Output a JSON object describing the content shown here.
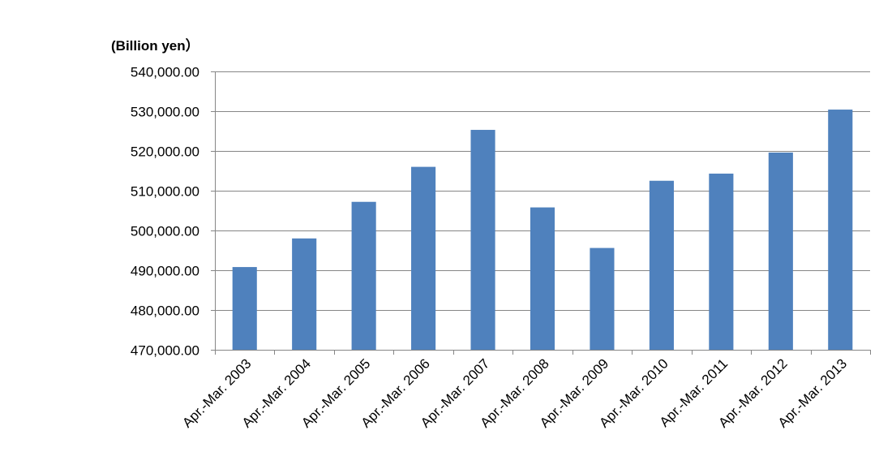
{
  "chart_data": {
    "type": "bar",
    "unit_label": "(Billion yen）",
    "categories": [
      "Apr.-Mar. 2003",
      "Apr.-Mar. 2004",
      "Apr.-Mar. 2005",
      "Apr.-Mar. 2006",
      "Apr.-Mar. 2007",
      "Apr.-Mar. 2008",
      "Apr.-Mar. 2009",
      "Apr.-Mar. 2010",
      "Apr.-Mar. 2011",
      "Apr.-Mar. 2012",
      "Apr.-Mar. 2013"
    ],
    "values": [
      490800,
      498000,
      507200,
      516000,
      525300,
      505800,
      495600,
      512500,
      514300,
      519600,
      530400
    ],
    "ylim": [
      470000,
      540000
    ],
    "yticks": [
      470000,
      480000,
      490000,
      500000,
      510000,
      520000,
      530000,
      540000
    ],
    "ytick_labels": [
      "470,000.00",
      "480,000.00",
      "490,000.00",
      "500,000.00",
      "510,000.00",
      "520,000.00",
      "530,000.00",
      "540,000.00"
    ],
    "grid": true,
    "legend": "none",
    "bar_color": "#4F81BD",
    "grid_color": "#868686",
    "xlabel": "",
    "ylabel": ""
  }
}
